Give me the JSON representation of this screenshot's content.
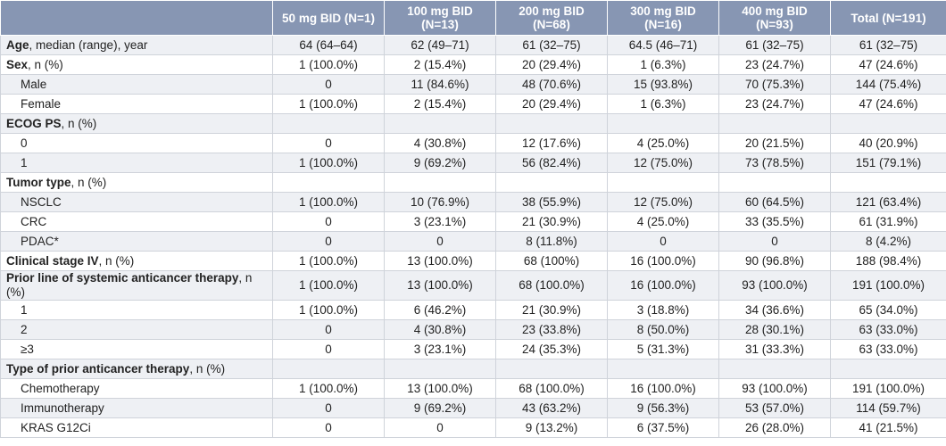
{
  "table": {
    "columns": [
      "50 mg BID (N=1)",
      "100 mg BID (N=13)",
      "200 mg BID (N=68)",
      "300 mg BID (N=16)",
      "400 mg BID (N=93)",
      "Total (N=191)"
    ],
    "rows": [
      {
        "label": [
          "Age",
          ", median (range), year"
        ],
        "cells": [
          "64 (64–64)",
          "62 (49–71)",
          "61 (32–75)",
          "64.5 (46–71)",
          "61 (32–75)",
          "61 (32–75)"
        ]
      },
      {
        "label": [
          "Sex",
          ", n (%)"
        ],
        "cells": [
          "1 (100.0%)",
          "2 (15.4%)",
          "20 (29.4%)",
          "1 (6.3%)",
          "23 (24.7%)",
          "47 (24.6%)"
        ]
      },
      {
        "label": "Male",
        "cells": [
          "0",
          "11 (84.6%)",
          "48 (70.6%)",
          "15 (93.8%)",
          "70 (75.3%)",
          "144 (75.4%)"
        ]
      },
      {
        "label": "Female",
        "cells": [
          "1 (100.0%)",
          "2 (15.4%)",
          "20 (29.4%)",
          "1 (6.3%)",
          "23 (24.7%)",
          "47 (24.6%)"
        ]
      },
      {
        "label": [
          "ECOG PS",
          ", n (%)"
        ]
      },
      {
        "label": "0",
        "cells": [
          "0",
          "4 (30.8%)",
          "12 (17.6%)",
          "4 (25.0%)",
          "20 (21.5%)",
          "40 (20.9%)"
        ]
      },
      {
        "label": "1",
        "cells": [
          "1 (100.0%)",
          "9 (69.2%)",
          "56 (82.4%)",
          "12 (75.0%)",
          "73 (78.5%)",
          "151 (79.1%)"
        ]
      },
      {
        "label": [
          "Tumor type",
          ", n (%)"
        ]
      },
      {
        "label": "NSCLC",
        "cells": [
          "1 (100.0%)",
          "10 (76.9%)",
          "38 (55.9%)",
          "12 (75.0%)",
          "60 (64.5%)",
          "121 (63.4%)"
        ]
      },
      {
        "label": "CRC",
        "cells": [
          "0",
          "3 (23.1%)",
          "21 (30.9%)",
          "4 (25.0%)",
          "33 (35.5%)",
          "61 (31.9%)"
        ]
      },
      {
        "label": "PDAC*",
        "cells": [
          "0",
          "0",
          "8 (11.8%)",
          "0",
          "0",
          "8 (4.2%)"
        ]
      },
      {
        "label": [
          "Clinical stage IV",
          ", n (%)"
        ],
        "cells": [
          "1 (100.0%)",
          "13 (100.0%)",
          "68 (100%)",
          "16 (100.0%)",
          "90 (96.8%)",
          "188 (98.4%)"
        ]
      },
      {
        "label": [
          "Prior line of systemic anticancer therapy",
          ", n (%)"
        ],
        "cells": [
          "1 (100.0%)",
          "13 (100.0%)",
          "68 (100.0%)",
          "16 (100.0%)",
          "93 (100.0%)",
          "191 (100.0%)"
        ]
      },
      {
        "label": "1",
        "cells": [
          "1 (100.0%)",
          "6 (46.2%)",
          "21 (30.9%)",
          "3 (18.8%)",
          "34 (36.6%)",
          "65 (34.0%)"
        ]
      },
      {
        "label": "2",
        "cells": [
          "0",
          "4 (30.8%)",
          "23 (33.8%)",
          "8 (50.0%)",
          "28 (30.1%)",
          "63 (33.0%)"
        ]
      },
      {
        "label": "≥3",
        "cells": [
          "0",
          "3 (23.1%)",
          "24 (35.3%)",
          "5 (31.3%)",
          "31 (33.3%)",
          "63 (33.0%)"
        ]
      },
      {
        "label": [
          "Type of prior anticancer therapy",
          ", n (%)"
        ]
      },
      {
        "label": "Chemotherapy",
        "cells": [
          "1 (100.0%)",
          "13 (100.0%)",
          "68 (100.0%)",
          "16 (100.0%)",
          "93 (100.0%)",
          "191 (100.0%)"
        ]
      },
      {
        "label": "Immunotherapy",
        "cells": [
          "0",
          "9 (69.2%)",
          "43 (63.2%)",
          "9 (56.3%)",
          "53 (57.0%)",
          "114 (59.7%)"
        ]
      },
      {
        "label": "KRAS G12Ci",
        "cells": [
          "0",
          "0",
          "9 (13.2%)",
          "6 (37.5%)",
          "26 (28.0%)",
          "41 (21.5%)"
        ]
      }
    ]
  }
}
